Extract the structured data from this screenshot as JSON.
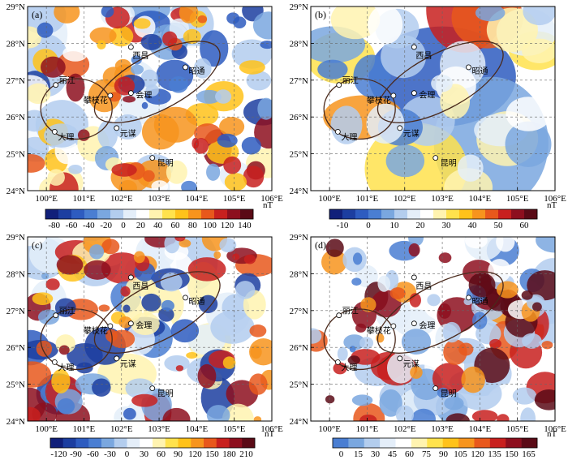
{
  "panels": [
    {
      "label": "(a)",
      "lat_ticks": [
        "24°N",
        "25°N",
        "26°N",
        "27°N",
        "28°N",
        "29°N"
      ],
      "lon_ticks": [
        "100°E",
        "101°E",
        "102°E",
        "103°E",
        "104°E",
        "105°E",
        "106°E"
      ],
      "colorbar": {
        "ticks": [
          "-80",
          "-60",
          "-40",
          "-20",
          "0",
          "20",
          "40",
          "60",
          "80",
          "100",
          "120",
          "140"
        ],
        "unit": "nT",
        "colors": [
          "#11207a",
          "#1c3ea0",
          "#2e5cc0",
          "#4a7ed2",
          "#7aa7df",
          "#b3cdee",
          "#e4eef9",
          "#ffffff",
          "#fff3b0",
          "#ffe24d",
          "#ffc21a",
          "#f7941d",
          "#e8581c",
          "#c8201e",
          "#8d0f1e",
          "#5a0a16"
        ]
      },
      "scheme": "a"
    },
    {
      "label": "(b)",
      "lat_ticks": [
        "24°N",
        "25°N",
        "26°N",
        "27°N",
        "28°N",
        "29°N"
      ],
      "lon_ticks": [
        "100°E",
        "101°E",
        "102°E",
        "103°E",
        "104°E",
        "105°E",
        "106°E"
      ],
      "colorbar": {
        "ticks": [
          "-10",
          "0",
          "10",
          "20",
          "30",
          "40",
          "50",
          "60"
        ],
        "unit": "nT",
        "colors": [
          "#11207a",
          "#1c3ea0",
          "#2e5cc0",
          "#4a7ed2",
          "#7aa7df",
          "#b3cdee",
          "#e4eef9",
          "#ffffff",
          "#fff3b0",
          "#ffe24d",
          "#ffc21a",
          "#f7941d",
          "#e8581c",
          "#c8201e",
          "#8d0f1e",
          "#5a0a16"
        ]
      },
      "scheme": "b"
    },
    {
      "label": "(c)",
      "lat_ticks": [
        "24°N",
        "25°N",
        "26°N",
        "27°N",
        "28°N",
        "29°N"
      ],
      "lon_ticks": [
        "100°E",
        "101°E",
        "102°E",
        "103°E",
        "104°E",
        "105°E",
        "106°E"
      ],
      "colorbar": {
        "ticks": [
          "-120",
          "-90",
          "-60",
          "-30",
          "0",
          "30",
          "60",
          "90",
          "120",
          "150",
          "180",
          "210"
        ],
        "unit": "nT",
        "colors": [
          "#11207a",
          "#1c3ea0",
          "#2e5cc0",
          "#4a7ed2",
          "#7aa7df",
          "#b3cdee",
          "#e4eef9",
          "#ffffff",
          "#fff3b0",
          "#ffe24d",
          "#ffc21a",
          "#f7941d",
          "#e8581c",
          "#c8201e",
          "#8d0f1e",
          "#5a0a16"
        ]
      },
      "scheme": "a"
    },
    {
      "label": "(d)",
      "lat_ticks": [
        "24°N",
        "25°N",
        "26°N",
        "27°N",
        "28°N",
        "29°N"
      ],
      "lon_ticks": [
        "100°E",
        "101°E",
        "102°E",
        "103°E",
        "104°E",
        "105°E",
        "106°E"
      ],
      "colorbar": {
        "ticks": [
          "0",
          "15",
          "30",
          "45",
          "60",
          "75",
          "90",
          "105",
          "120",
          "135",
          "150",
          "165"
        ],
        "unit": "nT",
        "colors": [
          "#4a7ed2",
          "#7aa7df",
          "#b3cdee",
          "#e4eef9",
          "#ffffff",
          "#fff3b0",
          "#ffe24d",
          "#ffc21a",
          "#f7941d",
          "#e8581c",
          "#c8201e",
          "#8d0f1e",
          "#5a0a16"
        ]
      },
      "scheme": "d"
    }
  ],
  "cities": [
    {
      "name": "西昌",
      "lon": 102.25,
      "lat": 27.9
    },
    {
      "name": "昭通",
      "lon": 103.7,
      "lat": 27.35
    },
    {
      "name": "丽江",
      "lon": 100.25,
      "lat": 26.87
    },
    {
      "name": "攀枝花",
      "lon": 101.7,
      "lat": 26.58
    },
    {
      "name": "会理",
      "lon": 102.25,
      "lat": 26.65
    },
    {
      "name": "元谋",
      "lon": 101.87,
      "lat": 25.7
    },
    {
      "name": "大理",
      "lon": 100.22,
      "lat": 25.6
    },
    {
      "name": "昆明",
      "lon": 102.82,
      "lat": 24.89
    }
  ],
  "extent": {
    "lon": [
      99.5,
      106.0
    ],
    "lat": [
      24.0,
      29.0
    ]
  },
  "ellipses": [
    {
      "lon": 100.8,
      "lat": 26.22,
      "rlon": 0.95,
      "rlat": 0.82,
      "angle": 0
    },
    {
      "lon": 102.95,
      "lat": 26.95,
      "rlon": 1.85,
      "rlat": 0.75,
      "angle": -28
    }
  ]
}
